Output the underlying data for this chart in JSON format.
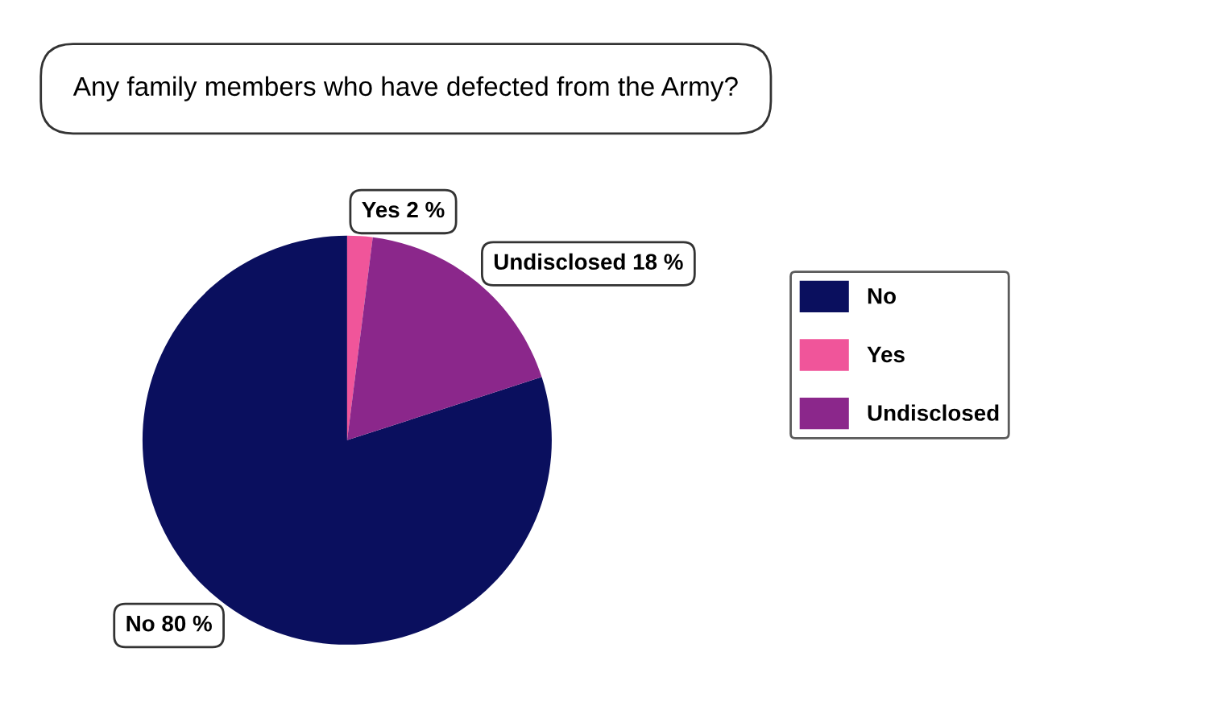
{
  "chart_data": {
    "type": "pie",
    "title": "Any family members who have defected from the Army?",
    "categories": [
      "No",
      "Yes",
      "Undisclosed"
    ],
    "values": [
      80,
      2,
      18
    ],
    "colors": [
      "#0a0f5e",
      "#f0559a",
      "#8b278b"
    ],
    "value_labels": [
      "No 80 %",
      "Yes 2 %",
      "Undisclosed 18 %"
    ],
    "legend": "right"
  }
}
